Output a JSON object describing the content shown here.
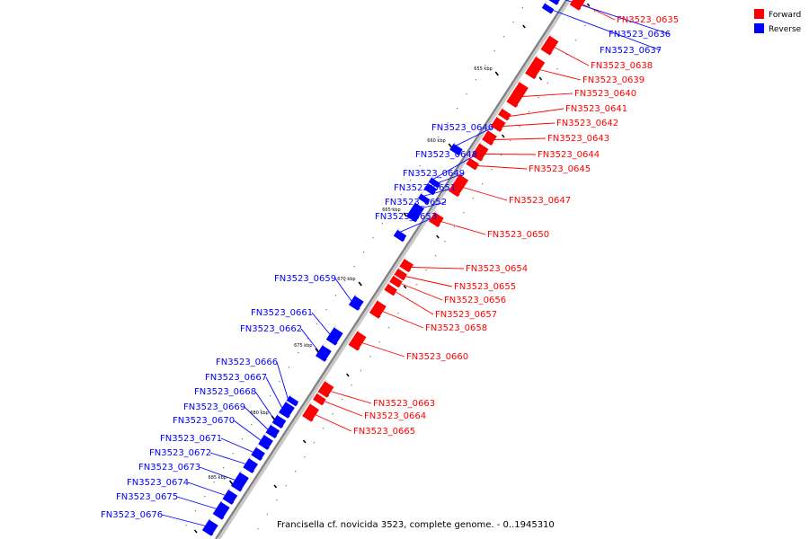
{
  "caption": "Francisella cf. novicida 3523, complete genome. - 0..1945310",
  "legend": [
    {
      "label": "Forward",
      "color": "#ff0000"
    },
    {
      "label": "Reverse",
      "color": "#0000ff"
    }
  ],
  "colors": {
    "forward": "#ff0000",
    "reverse": "#0000ff",
    "backbone": "#888888"
  },
  "ticks": [
    "655 kbp",
    "660 kbp",
    "665 kbp",
    "670 kbp",
    "675 kbp",
    "680 kbp",
    "685 kbp"
  ],
  "genes": [
    {
      "name": "FN3523_0635",
      "strand": "forward"
    },
    {
      "name": "FN3523_0636",
      "strand": "reverse"
    },
    {
      "name": "FN3523_0637",
      "strand": "reverse"
    },
    {
      "name": "FN3523_0638",
      "strand": "forward"
    },
    {
      "name": "FN3523_0639",
      "strand": "forward"
    },
    {
      "name": "FN3523_0640",
      "strand": "forward"
    },
    {
      "name": "FN3523_0641",
      "strand": "forward"
    },
    {
      "name": "FN3523_0642",
      "strand": "forward"
    },
    {
      "name": "FN3523_0643",
      "strand": "forward"
    },
    {
      "name": "FN3523_0644",
      "strand": "forward"
    },
    {
      "name": "FN3523_0645",
      "strand": "forward"
    },
    {
      "name": "FN3523_0646",
      "strand": "reverse"
    },
    {
      "name": "FN3523_0647",
      "strand": "forward"
    },
    {
      "name": "FN3523_0648",
      "strand": "reverse"
    },
    {
      "name": "FN3523_0649",
      "strand": "reverse"
    },
    {
      "name": "FN3523_0650",
      "strand": "forward"
    },
    {
      "name": "FN3523_0651",
      "strand": "reverse"
    },
    {
      "name": "FN3523_0652",
      "strand": "reverse"
    },
    {
      "name": "FN3523_0653",
      "strand": "reverse"
    },
    {
      "name": "FN3523_0654",
      "strand": "forward"
    },
    {
      "name": "FN3523_0655",
      "strand": "forward"
    },
    {
      "name": "FN3523_0656",
      "strand": "forward"
    },
    {
      "name": "FN3523_0657",
      "strand": "forward"
    },
    {
      "name": "FN3523_0658",
      "strand": "forward"
    },
    {
      "name": "FN3523_0659",
      "strand": "reverse"
    },
    {
      "name": "FN3523_0660",
      "strand": "forward"
    },
    {
      "name": "FN3523_0661",
      "strand": "reverse"
    },
    {
      "name": "FN3523_0662",
      "strand": "reverse"
    },
    {
      "name": "FN3523_0663",
      "strand": "forward"
    },
    {
      "name": "FN3523_0664",
      "strand": "forward"
    },
    {
      "name": "FN3523_0665",
      "strand": "forward"
    },
    {
      "name": "FN3523_0666",
      "strand": "reverse"
    },
    {
      "name": "FN3523_0667",
      "strand": "reverse"
    },
    {
      "name": "FN3523_0668",
      "strand": "reverse"
    },
    {
      "name": "FN3523_0669",
      "strand": "reverse"
    },
    {
      "name": "FN3523_0670",
      "strand": "reverse"
    },
    {
      "name": "FN3523_0671",
      "strand": "reverse"
    },
    {
      "name": "FN3523_0672",
      "strand": "reverse"
    },
    {
      "name": "FN3523_0673",
      "strand": "reverse"
    },
    {
      "name": "FN3523_0674",
      "strand": "reverse"
    },
    {
      "name": "FN3523_0675",
      "strand": "reverse"
    },
    {
      "name": "FN3523_0676",
      "strand": "reverse"
    }
  ]
}
